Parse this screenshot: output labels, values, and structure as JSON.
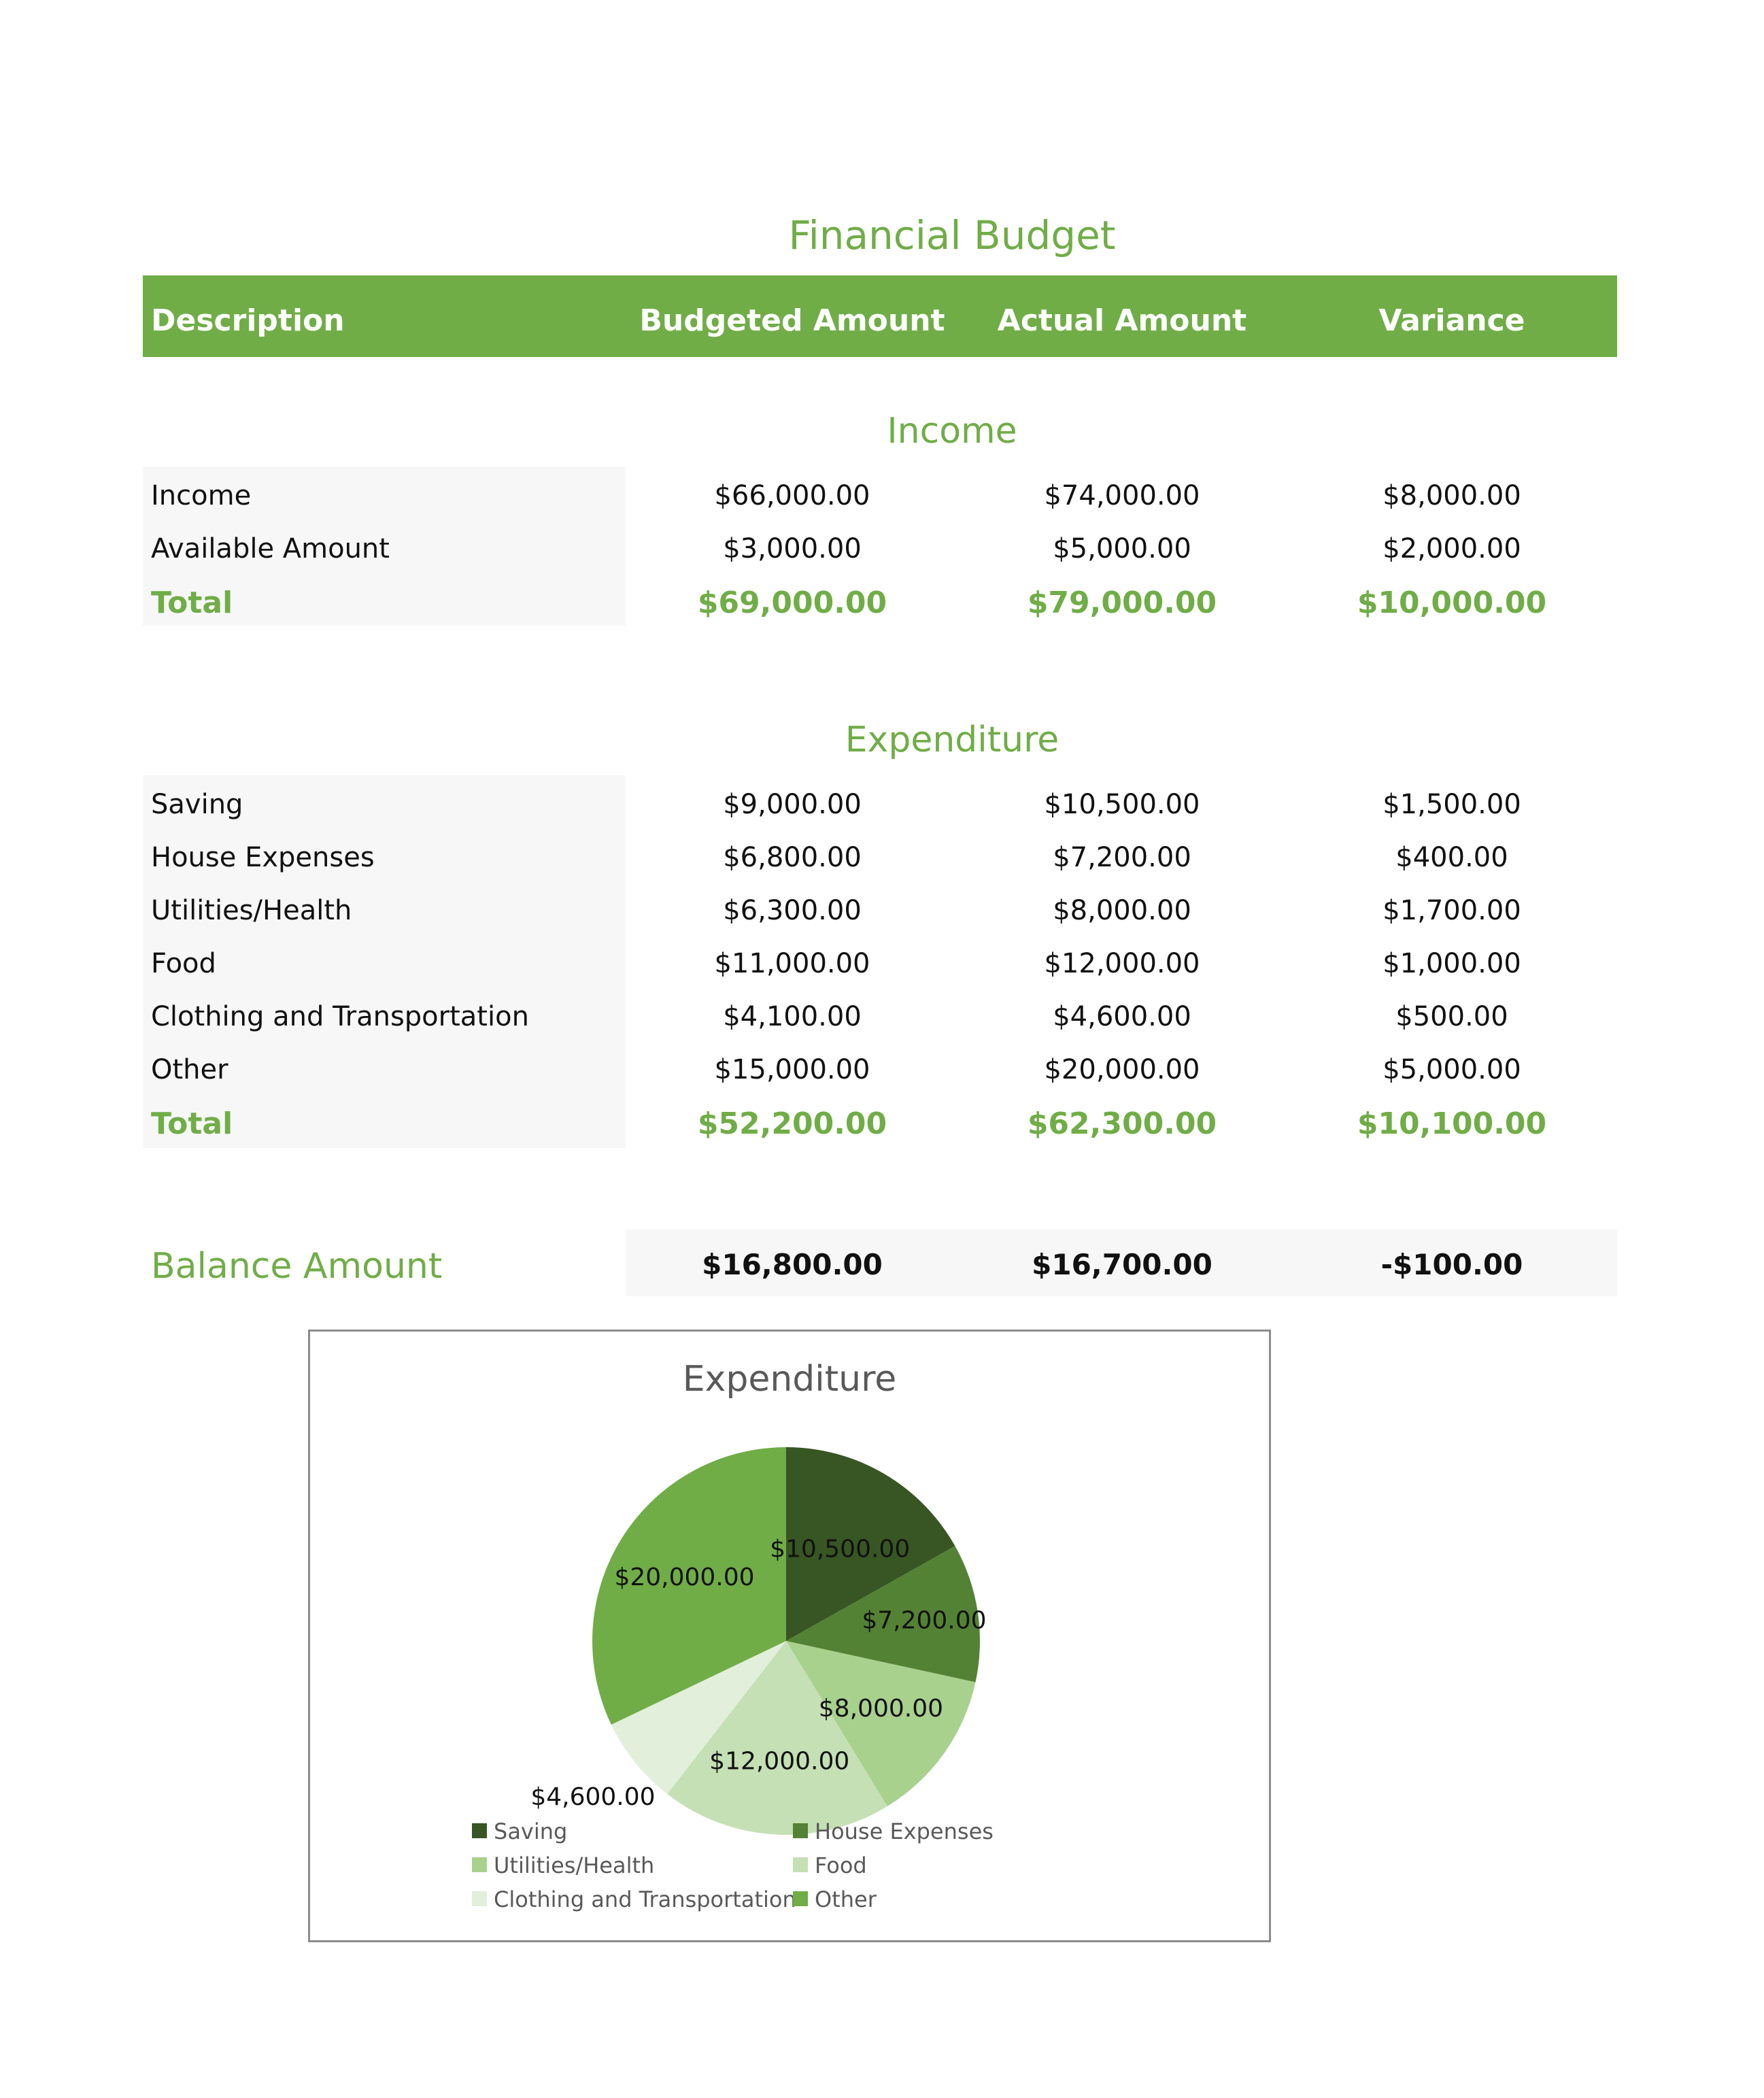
{
  "title": "Financial Budget",
  "header": {
    "description": "Description",
    "budgeted": "Budgeted Amount",
    "actual": "Actual Amount",
    "variance": "Variance"
  },
  "income": {
    "title": "Income",
    "rows": [
      {
        "description": "Income",
        "budgeted": "$66,000.00",
        "actual": "$74,000.00",
        "variance": "$8,000.00"
      },
      {
        "description": "Available Amount",
        "budgeted": "$3,000.00",
        "actual": "$5,000.00",
        "variance": "$2,000.00"
      }
    ],
    "total": {
      "description": "Total",
      "budgeted": "$69,000.00",
      "actual": "$79,000.00",
      "variance": "$10,000.00"
    }
  },
  "expenditure": {
    "title": "Expenditure",
    "rows": [
      {
        "description": "Saving",
        "budgeted": "$9,000.00",
        "actual": "$10,500.00",
        "variance": "$1,500.00"
      },
      {
        "description": "House Expenses",
        "budgeted": "$6,800.00",
        "actual": "$7,200.00",
        "variance": "$400.00"
      },
      {
        "description": "Utilities/Health",
        "budgeted": "$6,300.00",
        "actual": "$8,000.00",
        "variance": "$1,700.00"
      },
      {
        "description": "Food",
        "budgeted": "$11,000.00",
        "actual": "$12,000.00",
        "variance": "$1,000.00"
      },
      {
        "description": "Clothing and Transportation",
        "budgeted": "$4,100.00",
        "actual": "$4,600.00",
        "variance": "$500.00"
      },
      {
        "description": "Other",
        "budgeted": "$15,000.00",
        "actual": "$20,000.00",
        "variance": "$5,000.00"
      }
    ],
    "total": {
      "description": "Total",
      "budgeted": "$52,200.00",
      "actual": "$62,300.00",
      "variance": "$10,100.00"
    }
  },
  "balance": {
    "label": "Balance Amount",
    "budgeted": "$16,800.00",
    "actual": "$16,700.00",
    "variance": "-$100.00"
  },
  "colors": {
    "accent": "#70ad47",
    "row_shade": "#f7f7f7"
  },
  "chart_data": {
    "type": "pie",
    "title": "Expenditure",
    "categories": [
      "Saving",
      "House Expenses",
      "Utilities/Health",
      "Food",
      "Clothing and Transportation",
      "Other"
    ],
    "values": [
      10500,
      7200,
      8000,
      12000,
      4600,
      20000
    ],
    "data_labels": [
      "$10,500.00",
      "$7,200.00",
      "$8,000.00",
      "$12,000.00",
      "$4,600.00",
      "$20,000.00"
    ],
    "colors": [
      "#375623",
      "#548235",
      "#a9d18e",
      "#c5e0b4",
      "#e2efda",
      "#70ad47"
    ],
    "legend": "bottom"
  }
}
